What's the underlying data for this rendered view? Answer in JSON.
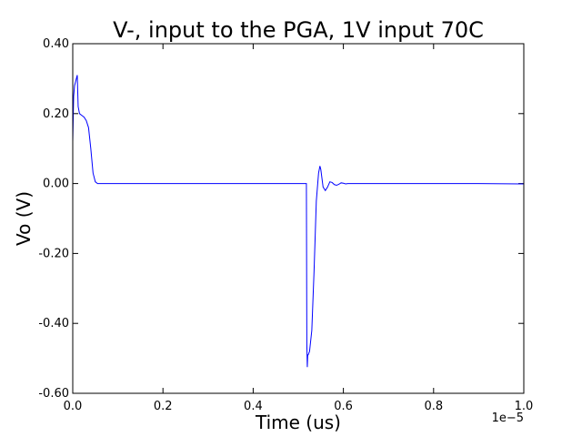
{
  "chart_data": {
    "type": "line",
    "title": "V-, input to the PGA, 1V input 70C",
    "xlabel": "Time (us)",
    "ylabel": "Vo (V)",
    "x_offset_label": "1e−5",
    "xlim": [
      0.0,
      1.0
    ],
    "ylim": [
      -0.6,
      0.4
    ],
    "x_ticks": [
      0.0,
      0.2,
      0.4,
      0.6,
      0.8,
      1.0
    ],
    "x_tick_labels": [
      "0.0",
      "0.2",
      "0.4",
      "0.6",
      "0.8",
      "1.0"
    ],
    "y_ticks": [
      0.4,
      0.2,
      0.0,
      -0.2,
      -0.4,
      -0.6
    ],
    "y_tick_labels": [
      "0.40",
      "0.20",
      "0.00",
      "-0.20",
      "-0.40",
      "-0.60"
    ],
    "grid": false,
    "series": [
      {
        "color": "#0000ff",
        "x": [
          0.0,
          0.002,
          0.004,
          0.006,
          0.008,
          0.01,
          0.012,
          0.015,
          0.02,
          0.025,
          0.03,
          0.035,
          0.04,
          0.045,
          0.05,
          0.055,
          0.06,
          0.07,
          0.08,
          0.1,
          0.2,
          0.3,
          0.4,
          0.5,
          0.518,
          0.519,
          0.52,
          0.521,
          0.522,
          0.525,
          0.53,
          0.535,
          0.54,
          0.545,
          0.548,
          0.55,
          0.552,
          0.555,
          0.56,
          0.565,
          0.57,
          0.575,
          0.58,
          0.585,
          0.59,
          0.595,
          0.6,
          0.605,
          0.61,
          0.62,
          0.64,
          0.7,
          0.8,
          0.9,
          0.995,
          1.0
        ],
        "y": [
          0.12,
          0.25,
          0.28,
          0.29,
          0.3,
          0.31,
          0.22,
          0.2,
          0.195,
          0.19,
          0.18,
          0.16,
          0.1,
          0.03,
          0.005,
          0.0,
          0.0,
          0.0,
          0.0,
          0.0,
          0.0,
          0.0,
          0.0,
          0.0,
          0.0,
          -0.46,
          -0.525,
          -0.49,
          -0.49,
          -0.48,
          -0.42,
          -0.25,
          -0.05,
          0.03,
          0.05,
          0.04,
          0.02,
          -0.01,
          -0.02,
          -0.01,
          0.005,
          0.003,
          -0.003,
          -0.005,
          -0.002,
          0.002,
          0.001,
          -0.001,
          0.0,
          0.0,
          0.0,
          0.0,
          0.0,
          0.0,
          -0.001,
          -0.001
        ]
      }
    ]
  }
}
